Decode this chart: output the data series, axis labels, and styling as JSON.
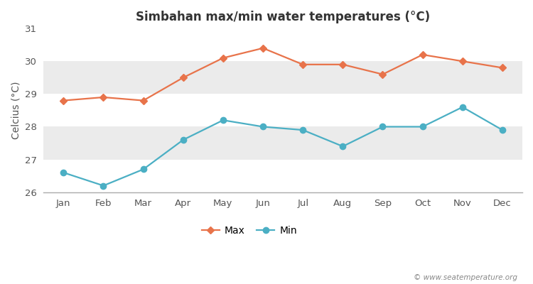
{
  "title": "Simbahan max/min water temperatures (°C)",
  "ylabel": "Celcius (°C)",
  "months": [
    "Jan",
    "Feb",
    "Mar",
    "Apr",
    "May",
    "Jun",
    "Jul",
    "Aug",
    "Sep",
    "Oct",
    "Nov",
    "Dec"
  ],
  "max_values": [
    28.8,
    28.9,
    28.8,
    29.5,
    30.1,
    30.4,
    29.9,
    29.9,
    29.6,
    30.2,
    30.0,
    29.8
  ],
  "min_values": [
    26.6,
    26.2,
    26.7,
    27.6,
    28.2,
    28.0,
    27.9,
    27.4,
    28.0,
    28.0,
    28.6,
    27.9
  ],
  "max_color": "#e8734a",
  "min_color": "#4bafc4",
  "ylim": [
    26,
    31
  ],
  "yticks": [
    26,
    27,
    28,
    29,
    30,
    31
  ],
  "fig_bg_color": "#ffffff",
  "band_colors": [
    "#ffffff",
    "#ebebeb"
  ],
  "watermark": "© www.seatemperature.org",
  "legend_max": "Max",
  "legend_min": "Min",
  "spine_color": "#aaaaaa",
  "tick_color": "#555555"
}
